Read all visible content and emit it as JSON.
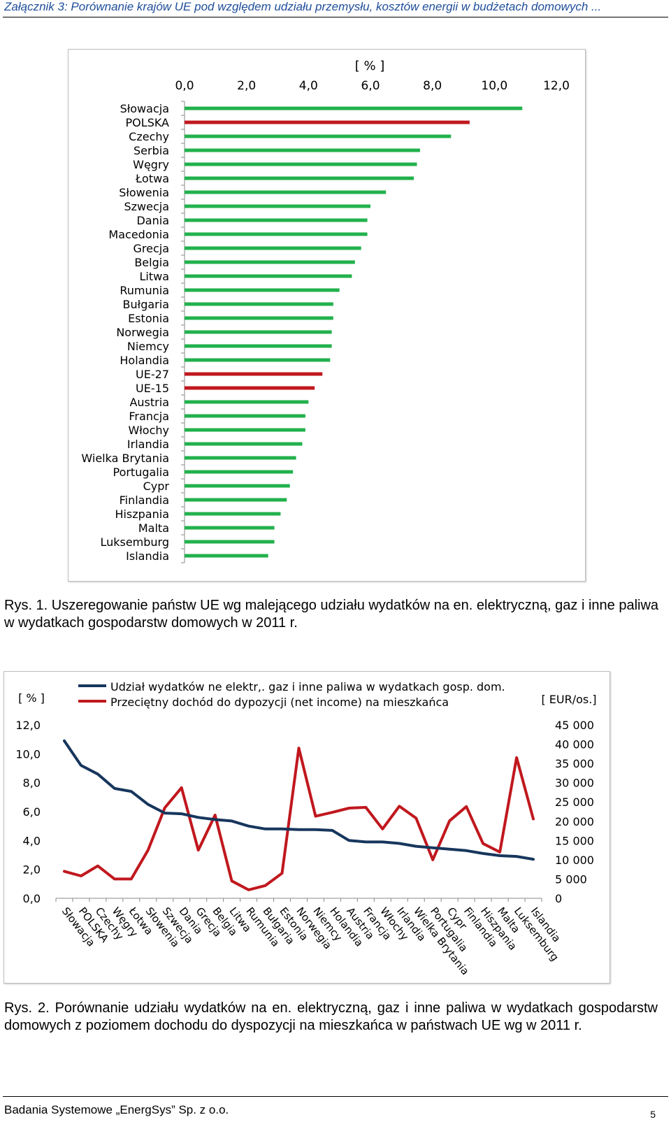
{
  "header": "Załącznik 3: Porównanie krajów UE pod względem udziału przemysłu, kosztów energii w budżetach domowych ...",
  "caption1": "Rys. 1. Uszeregowanie państw UE wg malejącego udziału wydatków na en. elektryczną, gaz i inne paliwa w wydatkach gospodarstw domowych w 2011 r.",
  "caption2": "Rys. 2. Porównanie udziału wydatków na en. elektryczną, gaz i inne paliwa w wydatkach gospodarstw domowych z poziomem dochodu do dyspozycji na mieszkańca w państwach UE wg w 2011 r.",
  "footer": "Badania Systemowe „EnergSys” Sp. z o.o.",
  "page_number": "5",
  "colors": {
    "green": "#22b14c",
    "red": "#c0181e",
    "navy": "#17365d"
  },
  "chart_data": [
    {
      "type": "bar",
      "orientation": "horizontal",
      "title": "[ % ]",
      "xlim": [
        0,
        12
      ],
      "xticks": [
        "0,0",
        "2,0",
        "4,0",
        "6,0",
        "8,0",
        "10,0",
        "12,0"
      ],
      "xtick_values": [
        0,
        2,
        4,
        6,
        8,
        10,
        12
      ],
      "categories": [
        "Słowacja",
        "POLSKA",
        "Czechy",
        "Serbia",
        "Węgry",
        "Łotwa",
        "Słowenia",
        "Szwecja",
        "Dania",
        "Macedonia",
        "Grecja",
        "Belgia",
        "Litwa",
        "Rumunia",
        "Bułgaria",
        "Estonia",
        "Norwegia",
        "Niemcy",
        "Holandia",
        "UE-27",
        "UE-15",
        "Austria",
        "Francja",
        "Włochy",
        "Irlandia",
        "Wielka Brytania",
        "Portugalia",
        "Cypr",
        "Finlandia",
        "Hiszpania",
        "Malta",
        "Luksemburg",
        "Islandia"
      ],
      "values": [
        10.9,
        9.2,
        8.6,
        7.6,
        7.5,
        7.4,
        6.5,
        6.0,
        5.9,
        5.9,
        5.7,
        5.5,
        5.4,
        5.0,
        4.8,
        4.8,
        4.75,
        4.75,
        4.7,
        4.45,
        4.2,
        4.0,
        3.9,
        3.9,
        3.8,
        3.6,
        3.5,
        3.4,
        3.3,
        3.1,
        2.9,
        2.9,
        2.7
      ],
      "highlighted": [
        "POLSKA",
        "UE-27",
        "UE-15"
      ]
    },
    {
      "type": "line",
      "legend": [
        "Udział wydatków ne elektr,. gaz i inne paliwa w wydatkach gosp. dom.",
        "Przeciętny dochód do dypozycji (net income) na mieszkańca"
      ],
      "ylabel_left": "[ % ]",
      "ylabel_right": "[ EUR/os.]",
      "ylim_left": [
        0,
        12
      ],
      "ylim_right": [
        0,
        45000
      ],
      "yticks_left": [
        "0,0",
        "2,0",
        "4,0",
        "6,0",
        "8,0",
        "10,0",
        "12,0"
      ],
      "yticks_left_values": [
        0,
        2,
        4,
        6,
        8,
        10,
        12
      ],
      "yticks_right": [
        "0",
        "5 000",
        "10 000",
        "15 000",
        "20 000",
        "25 000",
        "30 000",
        "35 000",
        "40 000",
        "45 000"
      ],
      "yticks_right_values": [
        0,
        5000,
        10000,
        15000,
        20000,
        25000,
        30000,
        35000,
        40000,
        45000
      ],
      "categories": [
        "Słowacja",
        "POLSKA",
        "Czechy",
        "Węgry",
        "Łotwa",
        "Słowenia",
        "Szwecja",
        "Dania",
        "Grecja",
        "Belgia",
        "Litwa",
        "Rumunia",
        "Bułgaria",
        "Estonia",
        "Norwegia",
        "Niemcy",
        "Holandia",
        "Austria",
        "Francja",
        "Włochy",
        "Irlandia",
        "Wielka Brytania",
        "Portugalia",
        "Cypr",
        "Finlandia",
        "Hiszpania",
        "Malta",
        "Luksemburg",
        "Islandia"
      ],
      "series": [
        {
          "name": "Udział wydatków ne elektr,. gaz i inne paliwa w wydatkach gosp. dom.",
          "axis": "left",
          "values": [
            10.9,
            9.2,
            8.6,
            7.6,
            7.4,
            6.5,
            5.9,
            5.85,
            5.6,
            5.45,
            5.35,
            5.0,
            4.8,
            4.8,
            4.75,
            4.75,
            4.7,
            4.0,
            3.9,
            3.9,
            3.8,
            3.6,
            3.5,
            3.4,
            3.3,
            3.1,
            2.95,
            2.9,
            2.7
          ]
        },
        {
          "name": "Przeciętny dochód do dypozycji (net income) na mieszkańca",
          "axis": "right",
          "values": [
            7000,
            5800,
            8400,
            5000,
            5000,
            12500,
            23500,
            28700,
            12500,
            21600,
            4500,
            2200,
            3300,
            6500,
            39000,
            21300,
            22300,
            23400,
            23600,
            18000,
            23900,
            20800,
            10000,
            20100,
            23800,
            14200,
            12000,
            36500,
            20600
          ]
        }
      ]
    }
  ]
}
